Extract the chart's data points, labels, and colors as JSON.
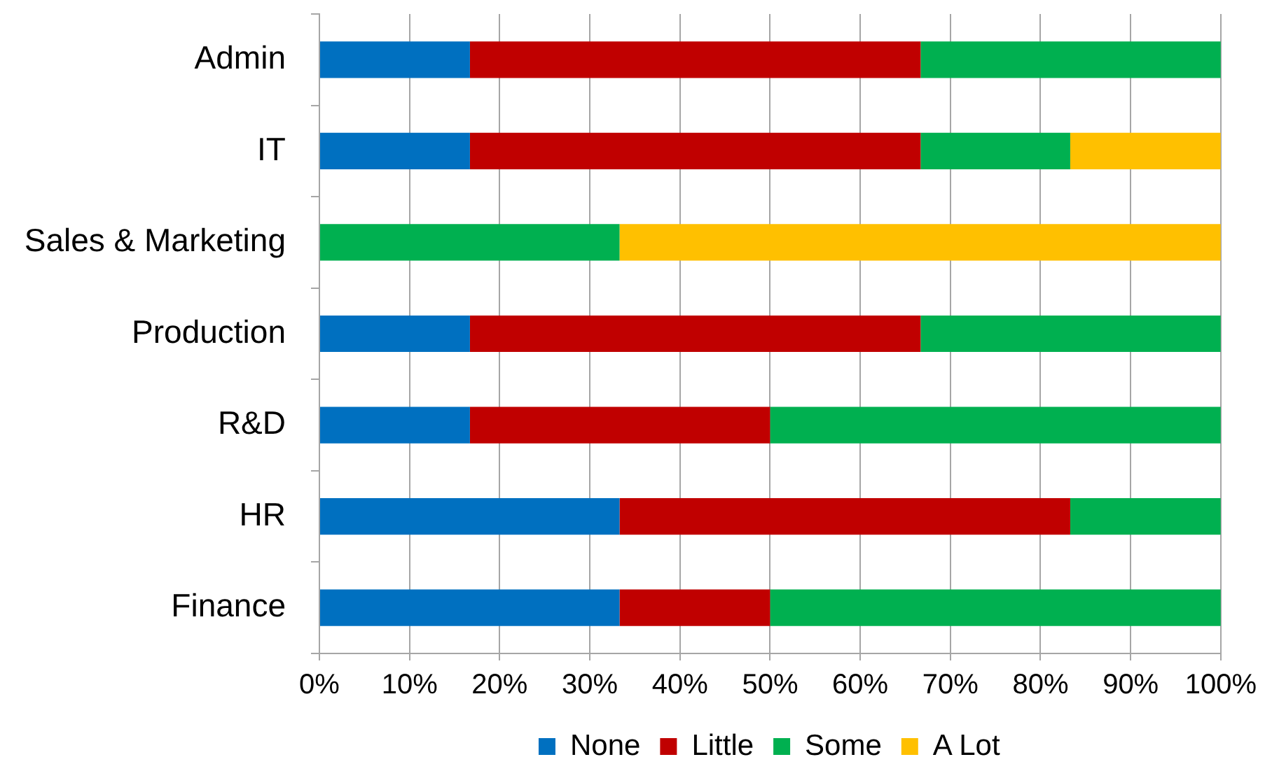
{
  "chart_data": {
    "type": "bar",
    "orientation": "horizontal",
    "stacked": true,
    "categories": [
      "Admin",
      "IT",
      "Sales & Marketing",
      "Production",
      "R&D",
      "HR",
      "Finance"
    ],
    "series": [
      {
        "name": "None",
        "color": "#0070c0",
        "values": [
          16.7,
          16.7,
          0,
          16.7,
          16.7,
          33.3,
          33.3
        ]
      },
      {
        "name": "Little",
        "color": "#c00000",
        "values": [
          50,
          50,
          0,
          50,
          33.3,
          50,
          16.7
        ]
      },
      {
        "name": "Some",
        "color": "#00b050",
        "values": [
          33.3,
          16.6,
          33.3,
          33.3,
          50,
          16.7,
          50
        ]
      },
      {
        "name": "A Lot",
        "color": "#ffc000",
        "values": [
          0,
          16.7,
          66.7,
          0,
          0,
          0,
          0
        ]
      }
    ],
    "xlim": [
      0,
      100
    ],
    "xticks": [
      {
        "value": 0,
        "label": "0%"
      },
      {
        "value": 10,
        "label": "10%"
      },
      {
        "value": 20,
        "label": "20%"
      },
      {
        "value": 30,
        "label": "30%"
      },
      {
        "value": 40,
        "label": "40%"
      },
      {
        "value": 50,
        "label": "50%"
      },
      {
        "value": 60,
        "label": "60%"
      },
      {
        "value": 70,
        "label": "70%"
      },
      {
        "value": 80,
        "label": "80%"
      },
      {
        "value": 90,
        "label": "90%"
      },
      {
        "value": 100,
        "label": "100%"
      }
    ],
    "grid": "x",
    "legend": "bottom"
  }
}
